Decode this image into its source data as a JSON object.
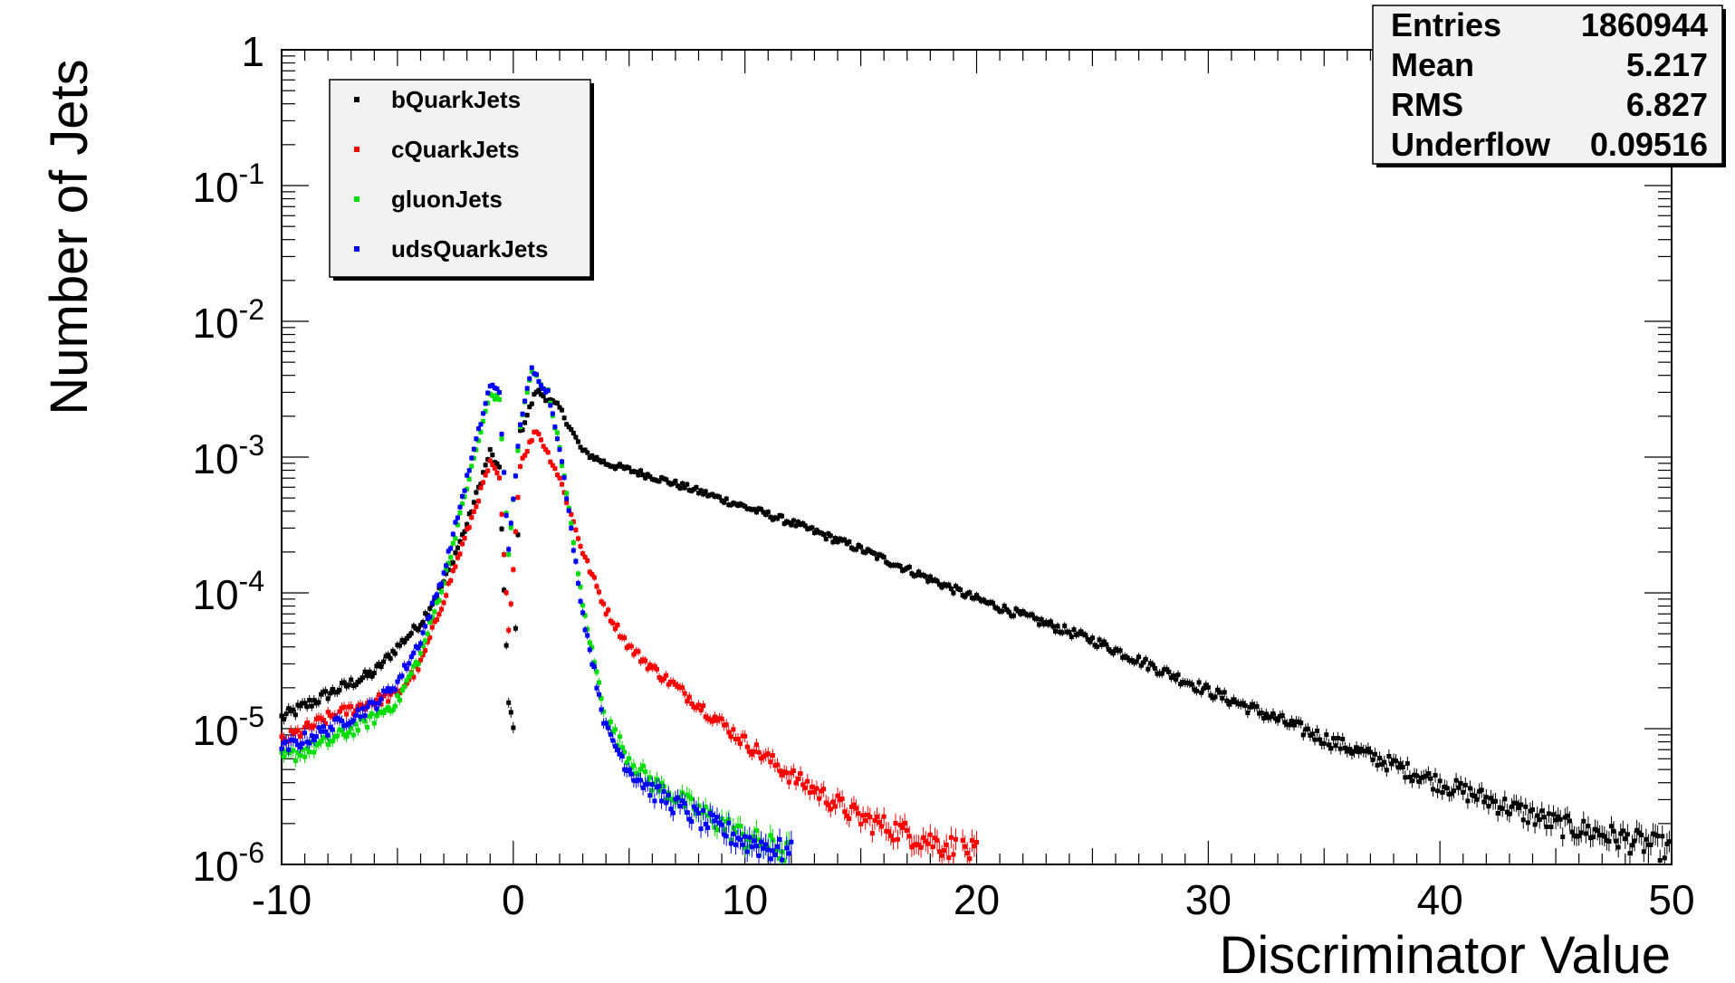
{
  "chart_data": {
    "type": "scatter",
    "ylabel": "Number of Jets",
    "xlabel": "Discriminator Value",
    "xlim": [
      -10,
      50
    ],
    "ylim": [
      1e-06,
      1
    ],
    "yscale": "log",
    "x_ticks": [
      "-10",
      "0",
      "10",
      "20",
      "30",
      "40",
      "50"
    ],
    "y_ticks": [
      {
        "base": "10",
        "exp": "-6",
        "value": 1e-06
      },
      {
        "base": "10",
        "exp": "-5",
        "value": 1e-05
      },
      {
        "base": "10",
        "exp": "-4",
        "value": 0.0001
      },
      {
        "base": "10",
        "exp": "-3",
        "value": 0.001
      },
      {
        "base": "10",
        "exp": "-2",
        "value": 0.01
      },
      {
        "base": "10",
        "exp": "-1",
        "value": 0.1
      },
      {
        "base": "1",
        "exp": "",
        "value": 1
      }
    ],
    "legend_position": "top-left",
    "stats": [
      {
        "label": "Entries",
        "value": "1860944"
      },
      {
        "label": "Mean",
        "value": "5.217"
      },
      {
        "label": "RMS",
        "value": "6.827"
      },
      {
        "label": "Underflow",
        "value": "0.09516"
      }
    ],
    "series": [
      {
        "name": "bQuarkJets",
        "color": "#000000",
        "points": [
          [
            -10,
            1.2e-05
          ],
          [
            -8,
            1.8e-05
          ],
          [
            -6,
            2.6e-05
          ],
          [
            -5,
            4e-05
          ],
          [
            -4,
            6e-05
          ],
          [
            -3,
            0.00012
          ],
          [
            -2,
            0.00032
          ],
          [
            -1,
            0.0011
          ],
          [
            -0.6,
            0.0008
          ],
          [
            -0.2,
            1.5e-05
          ],
          [
            0,
            1e-05
          ],
          [
            0.3,
            0.0015
          ],
          [
            1,
            0.0031
          ],
          [
            2,
            0.0023
          ],
          [
            3,
            0.0011
          ],
          [
            4,
            0.0009
          ],
          [
            6,
            0.00072
          ],
          [
            8,
            0.00056
          ],
          [
            10,
            0.00043
          ],
          [
            12,
            0.00033
          ],
          [
            15,
            0.00021
          ],
          [
            20,
            9e-05
          ],
          [
            25,
            4.5e-05
          ],
          [
            30,
            1.9e-05
          ],
          [
            35,
            8.5e-06
          ],
          [
            40,
            4e-06
          ],
          [
            45,
            2e-06
          ],
          [
            50,
            1.3e-06
          ]
        ]
      },
      {
        "name": "cQuarkJets",
        "color": "#ff0000",
        "points": [
          [
            -10,
            8e-06
          ],
          [
            -8,
            1.2e-05
          ],
          [
            -6,
            1.6e-05
          ],
          [
            -5,
            1.8e-05
          ],
          [
            -4,
            3e-05
          ],
          [
            -3,
            9e-05
          ],
          [
            -2,
            0.00028
          ],
          [
            -1,
            0.0009
          ],
          [
            -0.6,
            0.0007
          ],
          [
            -0.2,
            5e-05
          ],
          [
            0.3,
            0.0009
          ],
          [
            1,
            0.0016
          ],
          [
            2,
            0.0007
          ],
          [
            3,
            0.0002
          ],
          [
            4,
            7.5e-05
          ],
          [
            5,
            4e-05
          ],
          [
            6,
            2.8e-05
          ],
          [
            8,
            1.5e-05
          ],
          [
            10,
            8e-06
          ],
          [
            12,
            4.5e-06
          ],
          [
            15,
            2.2e-06
          ],
          [
            18,
            1.5e-06
          ],
          [
            20,
            1.2e-06
          ]
        ]
      },
      {
        "name": "gluonJets",
        "color": "#00dd00",
        "points": [
          [
            -10,
            6e-06
          ],
          [
            -8,
            8e-06
          ],
          [
            -6,
            1.2e-05
          ],
          [
            -5,
            1.6e-05
          ],
          [
            -4,
            3.5e-05
          ],
          [
            -3,
            0.00012
          ],
          [
            -2,
            0.0006
          ],
          [
            -1,
            0.0029
          ],
          [
            -0.6,
            0.0027
          ],
          [
            -0.2,
            0.0002
          ],
          [
            0.3,
            0.0017
          ],
          [
            0.8,
            0.0043
          ],
          [
            1.5,
            0.003
          ],
          [
            2,
            0.0012
          ],
          [
            3,
            8e-05
          ],
          [
            4,
            1.2e-05
          ],
          [
            5,
            6e-06
          ],
          [
            6,
            4e-06
          ],
          [
            8,
            2.5e-06
          ],
          [
            10,
            1.6e-06
          ],
          [
            12,
            1.2e-06
          ]
        ]
      },
      {
        "name": "udsQuarkJets",
        "color": "#0000ff",
        "points": [
          [
            -10,
            7e-06
          ],
          [
            -8,
            1e-05
          ],
          [
            -6,
            1.5e-05
          ],
          [
            -5,
            2.2e-05
          ],
          [
            -4,
            4.5e-05
          ],
          [
            -3,
            0.00014
          ],
          [
            -2,
            0.0007
          ],
          [
            -1,
            0.0034
          ],
          [
            -0.6,
            0.003
          ],
          [
            -0.2,
            0.0002
          ],
          [
            0.3,
            0.0018
          ],
          [
            0.8,
            0.0044
          ],
          [
            1.5,
            0.003
          ],
          [
            2,
            0.0012
          ],
          [
            3,
            7e-05
          ],
          [
            4,
            1e-05
          ],
          [
            5,
            5e-06
          ],
          [
            6,
            3.5e-06
          ],
          [
            8,
            2.2e-06
          ],
          [
            10,
            1.5e-06
          ],
          [
            12,
            1.2e-06
          ]
        ]
      }
    ]
  }
}
